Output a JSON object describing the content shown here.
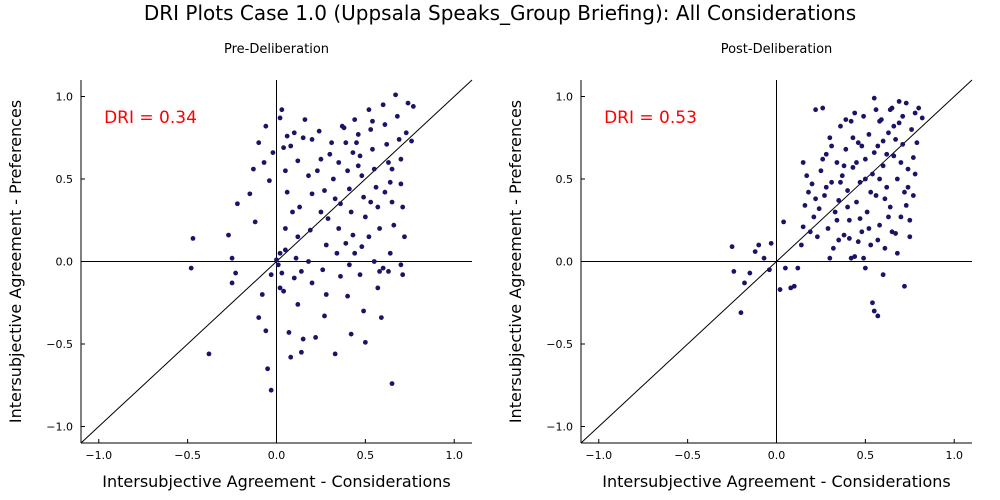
{
  "title": "DRI Plots Case 1.0 (Uppsala Speaks_Group Briefing): All Considerations",
  "colors": {
    "point": "#1a1466",
    "annotation": "#ff0000",
    "axis": "#000000"
  },
  "chart_data": [
    {
      "type": "scatter",
      "title": "Pre-Deliberation",
      "xlabel": "Intersubjective Agreement - Considerations",
      "ylabel": "Intersubjective Agreement - Preferences",
      "xlim": [
        -1.1,
        1.1
      ],
      "ylim": [
        -1.1,
        1.1
      ],
      "xticks": [
        -1.0,
        -0.5,
        0.0,
        0.5,
        1.0
      ],
      "yticks": [
        -1.0,
        -0.5,
        0.0,
        0.5,
        1.0
      ],
      "xtick_labels": [
        "−1.0",
        "−0.5",
        "0.0",
        "0.5",
        "1.0"
      ],
      "ytick_labels": [
        "−1.0",
        "−0.5",
        "0.0",
        "0.5",
        "1.0"
      ],
      "grid": false,
      "reference_lines": [
        "y=x",
        "x=0",
        "y=0"
      ],
      "annotation": "DRI = 0.34",
      "points": [
        [
          -0.47,
          0.14
        ],
        [
          -0.48,
          -0.04
        ],
        [
          -0.38,
          -0.56
        ],
        [
          -0.27,
          0.16
        ],
        [
          -0.25,
          0.02
        ],
        [
          -0.23,
          -0.07
        ],
        [
          -0.25,
          -0.13
        ],
        [
          -0.22,
          0.35
        ],
        [
          -0.15,
          0.41
        ],
        [
          -0.13,
          0.56
        ],
        [
          -0.12,
          0.24
        ],
        [
          -0.1,
          0.72
        ],
        [
          -0.07,
          0.6
        ],
        [
          -0.06,
          0.82
        ],
        [
          -0.04,
          0.49
        ],
        [
          -0.02,
          0.66
        ],
        [
          -0.03,
          -0.08
        ],
        [
          -0.05,
          -0.65
        ],
        [
          -0.03,
          -0.78
        ],
        [
          -0.06,
          -0.42
        ],
        [
          -0.08,
          -0.2
        ],
        [
          -0.1,
          -0.34
        ],
        [
          0.0,
          0.01
        ],
        [
          0.01,
          -0.02
        ],
        [
          0.02,
          0.05
        ],
        [
          0.02,
          0.87
        ],
        [
          0.03,
          0.92
        ],
        [
          0.04,
          0.69
        ],
        [
          0.05,
          0.55
        ],
        [
          0.06,
          0.42
        ],
        [
          0.05,
          0.2
        ],
        [
          0.03,
          -0.07
        ],
        [
          0.02,
          -0.16
        ],
        [
          0.04,
          -0.18
        ],
        [
          0.07,
          -0.43
        ],
        [
          0.08,
          -0.58
        ],
        [
          0.1,
          0.78
        ],
        [
          0.12,
          0.61
        ],
        [
          0.13,
          0.33
        ],
        [
          0.11,
          0.02
        ],
        [
          0.1,
          -0.1
        ],
        [
          0.12,
          -0.26
        ],
        [
          0.14,
          -0.55
        ],
        [
          0.15,
          -0.47
        ],
        [
          0.16,
          0.86
        ],
        [
          0.18,
          0.52
        ],
        [
          0.2,
          0.41
        ],
        [
          0.19,
          0.19
        ],
        [
          0.18,
          0.0
        ],
        [
          0.2,
          -0.13
        ],
        [
          0.22,
          -0.46
        ],
        [
          0.24,
          0.79
        ],
        [
          0.25,
          0.62
        ],
        [
          0.27,
          0.43
        ],
        [
          0.29,
          0.26
        ],
        [
          0.28,
          0.1
        ],
        [
          0.26,
          -0.05
        ],
        [
          0.27,
          -0.33
        ],
        [
          0.3,
          0.65
        ],
        [
          0.32,
          0.5
        ],
        [
          0.33,
          0.38
        ],
        [
          0.35,
          0.2
        ],
        [
          0.34,
          0.05
        ],
        [
          0.36,
          -0.09
        ],
        [
          0.33,
          -0.56
        ],
        [
          0.37,
          0.82
        ],
        [
          0.39,
          0.72
        ],
        [
          0.4,
          0.55
        ],
        [
          0.41,
          0.44
        ],
        [
          0.42,
          0.3
        ],
        [
          0.43,
          0.16
        ],
        [
          0.41,
          -0.02
        ],
        [
          0.4,
          -0.21
        ],
        [
          0.42,
          -0.44
        ],
        [
          0.44,
          0.86
        ],
        [
          0.46,
          0.77
        ],
        [
          0.47,
          0.64
        ],
        [
          0.48,
          0.52
        ],
        [
          0.49,
          0.39
        ],
        [
          0.5,
          0.27
        ],
        [
          0.48,
          0.09
        ],
        [
          0.47,
          -0.08
        ],
        [
          0.49,
          -0.3
        ],
        [
          0.5,
          -0.49
        ],
        [
          0.52,
          0.92
        ],
        [
          0.53,
          0.8
        ],
        [
          0.54,
          0.68
        ],
        [
          0.55,
          0.56
        ],
        [
          0.56,
          0.45
        ],
        [
          0.57,
          0.33
        ],
        [
          0.58,
          0.2
        ],
        [
          0.55,
          0.0
        ],
        [
          0.57,
          -0.16
        ],
        [
          0.59,
          -0.34
        ],
        [
          0.6,
          0.95
        ],
        [
          0.61,
          0.83
        ],
        [
          0.62,
          0.71
        ],
        [
          0.63,
          0.6
        ],
        [
          0.64,
          0.48
        ],
        [
          0.65,
          0.36
        ],
        [
          0.66,
          0.22
        ],
        [
          0.64,
          0.05
        ],
        [
          0.63,
          -0.06
        ],
        [
          0.65,
          -0.74
        ],
        [
          0.67,
          1.01
        ],
        [
          0.68,
          0.88
        ],
        [
          0.69,
          0.74
        ],
        [
          0.7,
          0.62
        ],
        [
          0.7,
          0.47
        ],
        [
          0.71,
          0.33
        ],
        [
          0.72,
          0.15
        ],
        [
          0.7,
          -0.02
        ],
        [
          0.71,
          -0.08
        ],
        [
          0.73,
          0.78
        ],
        [
          0.74,
          0.96
        ],
        [
          0.76,
          0.73
        ],
        [
          0.77,
          0.94
        ],
        [
          0.45,
          0.72
        ],
        [
          0.35,
          0.6
        ],
        [
          0.25,
          0.3
        ],
        [
          0.15,
          0.75
        ],
        [
          0.38,
          0.81
        ],
        [
          0.52,
          0.15
        ],
        [
          0.58,
          -0.06
        ],
        [
          0.06,
          0.76
        ],
        [
          0.09,
          0.3
        ],
        [
          0.31,
          0.72
        ],
        [
          0.46,
          0.58
        ],
        [
          0.44,
          0.05
        ],
        [
          0.53,
          0.36
        ],
        [
          0.61,
          0.42
        ],
        [
          0.6,
          -0.04
        ],
        [
          0.2,
          0.74
        ],
        [
          0.12,
          0.15
        ],
        [
          0.05,
          0.07
        ],
        [
          0.23,
          0.55
        ],
        [
          0.36,
          0.35
        ],
        [
          0.28,
          -0.2
        ],
        [
          0.65,
          0.56
        ],
        [
          0.54,
          0.85
        ],
        [
          0.39,
          0.11
        ],
        [
          0.14,
          -0.06
        ],
        [
          0.08,
          0.7
        ],
        [
          0.43,
          0.66
        ]
      ]
    },
    {
      "type": "scatter",
      "title": "Post-Deliberation",
      "xlabel": "Intersubjective Agreement - Considerations",
      "ylabel": "Intersubjective Agreement - Preferences",
      "xlim": [
        -1.1,
        1.1
      ],
      "ylim": [
        -1.1,
        1.1
      ],
      "xticks": [
        -1.0,
        -0.5,
        0.0,
        0.5,
        1.0
      ],
      "yticks": [
        -1.0,
        -0.5,
        0.0,
        0.5,
        1.0
      ],
      "xtick_labels": [
        "−1.0",
        "−0.5",
        "0.0",
        "0.5",
        "1.0"
      ],
      "ytick_labels": [
        "−1.0",
        "−0.5",
        "0.0",
        "0.5",
        "1.0"
      ],
      "grid": false,
      "reference_lines": [
        "y=x",
        "x=0",
        "y=0"
      ],
      "annotation": "DRI = 0.53",
      "points": [
        [
          -0.25,
          0.09
        ],
        [
          -0.24,
          -0.06
        ],
        [
          -0.2,
          -0.31
        ],
        [
          -0.18,
          -0.13
        ],
        [
          -0.15,
          -0.07
        ],
        [
          -0.12,
          0.06
        ],
        [
          -0.1,
          0.1
        ],
        [
          -0.07,
          0.02
        ],
        [
          -0.03,
          0.11
        ],
        [
          -0.04,
          -0.05
        ],
        [
          0.02,
          -0.17
        ],
        [
          0.04,
          0.24
        ],
        [
          0.05,
          -0.04
        ],
        [
          0.08,
          -0.16
        ],
        [
          0.1,
          -0.15
        ],
        [
          0.12,
          -0.04
        ],
        [
          0.14,
          0.1
        ],
        [
          0.15,
          0.21
        ],
        [
          0.16,
          0.34
        ],
        [
          0.15,
          0.6
        ],
        [
          0.17,
          0.52
        ],
        [
          0.18,
          0.42
        ],
        [
          0.2,
          0.47
        ],
        [
          0.21,
          0.27
        ],
        [
          0.22,
          0.92
        ],
        [
          0.23,
          0.15
        ],
        [
          0.24,
          0.32
        ],
        [
          0.25,
          0.55
        ],
        [
          0.26,
          0.93
        ],
        [
          0.27,
          0.4
        ],
        [
          0.28,
          0.65
        ],
        [
          0.29,
          0.2
        ],
        [
          0.3,
          0.75
        ],
        [
          0.31,
          0.48
        ],
        [
          0.32,
          0.08
        ],
        [
          0.33,
          0.3
        ],
        [
          0.34,
          0.6
        ],
        [
          0.35,
          0.37
        ],
        [
          0.36,
          0.82
        ],
        [
          0.37,
          0.52
        ],
        [
          0.38,
          0.16
        ],
        [
          0.39,
          0.68
        ],
        [
          0.4,
          0.43
        ],
        [
          0.41,
          0.25
        ],
        [
          0.42,
          0.85
        ],
        [
          0.43,
          0.57
        ],
        [
          0.44,
          0.03
        ],
        [
          0.45,
          0.36
        ],
        [
          0.46,
          0.72
        ],
        [
          0.47,
          0.48
        ],
        [
          0.48,
          0.18
        ],
        [
          0.49,
          0.88
        ],
        [
          0.5,
          0.62
        ],
        [
          0.51,
          0.3
        ],
        [
          0.52,
          0.77
        ],
        [
          0.53,
          0.1
        ],
        [
          0.54,
          0.53
        ],
        [
          0.55,
          0.99
        ],
        [
          0.56,
          0.4
        ],
        [
          0.57,
          0.7
        ],
        [
          0.58,
          0.22
        ],
        [
          0.59,
          0.86
        ],
        [
          0.6,
          0.58
        ],
        [
          0.61,
          0.08
        ],
        [
          0.62,
          0.45
        ],
        [
          0.63,
          0.78
        ],
        [
          0.64,
          0.33
        ],
        [
          0.65,
          0.93
        ],
        [
          0.66,
          0.64
        ],
        [
          0.67,
          0.17
        ],
        [
          0.68,
          0.5
        ],
        [
          0.69,
          0.84
        ],
        [
          0.7,
          0.27
        ],
        [
          0.71,
          0.71
        ],
        [
          0.72,
          0.42
        ],
        [
          0.73,
          0.96
        ],
        [
          0.74,
          0.56
        ],
        [
          0.75,
          0.15
        ],
        [
          0.76,
          0.8
        ],
        [
          0.77,
          0.63
        ],
        [
          0.78,
          0.9
        ],
        [
          0.79,
          0.72
        ],
        [
          0.8,
          0.93
        ],
        [
          0.82,
          0.87
        ],
        [
          0.54,
          -0.25
        ],
        [
          0.55,
          -0.3
        ],
        [
          0.57,
          -0.33
        ],
        [
          0.72,
          -0.15
        ],
        [
          0.6,
          -0.08
        ],
        [
          0.5,
          -0.04
        ],
        [
          0.42,
          0.02
        ],
        [
          0.35,
          0.13
        ],
        [
          0.3,
          0.02
        ],
        [
          0.68,
          0.05
        ],
        [
          0.75,
          0.25
        ],
        [
          0.77,
          0.4
        ],
        [
          0.62,
          0.65
        ],
        [
          0.48,
          0.7
        ],
        [
          0.38,
          0.58
        ],
        [
          0.44,
          0.9
        ],
        [
          0.58,
          0.5
        ],
        [
          0.66,
          0.82
        ],
        [
          0.7,
          0.6
        ],
        [
          0.53,
          0.42
        ],
        [
          0.47,
          0.26
        ],
        [
          0.41,
          0.14
        ],
        [
          0.36,
          0.48
        ],
        [
          0.26,
          0.62
        ],
        [
          0.31,
          0.7
        ],
        [
          0.45,
          0.6
        ],
        [
          0.6,
          0.73
        ],
        [
          0.64,
          0.92
        ],
        [
          0.71,
          0.88
        ],
        [
          0.74,
          0.45
        ],
        [
          0.78,
          0.53
        ],
        [
          0.52,
          0.2
        ],
        [
          0.57,
          0.13
        ],
        [
          0.63,
          0.27
        ],
        [
          0.49,
          0.02
        ],
        [
          0.4,
          0.33
        ],
        [
          0.34,
          0.25
        ],
        [
          0.28,
          0.45
        ],
        [
          0.22,
          0.38
        ],
        [
          0.19,
          0.18
        ],
        [
          0.58,
          0.85
        ],
        [
          0.67,
          0.74
        ],
        [
          0.43,
          0.75
        ],
        [
          0.55,
          0.66
        ],
        [
          0.61,
          0.38
        ],
        [
          0.5,
          0.5
        ],
        [
          0.39,
          0.86
        ],
        [
          0.73,
          0.34
        ],
        [
          0.46,
          0.12
        ],
        [
          0.65,
          0.18
        ],
        [
          0.69,
          0.97
        ],
        [
          0.56,
          0.92
        ]
      ]
    }
  ]
}
